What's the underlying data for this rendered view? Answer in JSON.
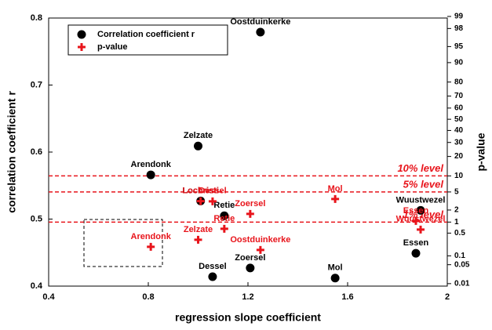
{
  "chart_data": {
    "type": "scatter",
    "xlabel": "regression slope coefficient",
    "ylabel": "correlation coefficient r",
    "y2label": "p-value",
    "xlim": [
      0.4,
      2
    ],
    "xticks": [
      0.4,
      0.8,
      1.2,
      1.6,
      2
    ],
    "ylim": [
      0.4,
      0.8
    ],
    "yticks": [
      0.4,
      0.5,
      0.6,
      0.7,
      0.8
    ],
    "y2lim": [
      0.008,
      98.9
    ],
    "y2scale": "probit",
    "y2ticks": [
      0.01,
      0.05,
      0.1,
      0.5,
      1,
      2,
      5,
      10,
      20,
      30,
      40,
      50,
      60,
      70,
      80,
      90,
      95,
      98,
      99
    ],
    "legend": "upper left",
    "series": [
      {
        "name": "Correlation coefficient r",
        "color": "#000000",
        "marker": "circle",
        "labels": [
          "Oostduinkerke",
          "Zelzate",
          "Arendonk",
          "Lochristi",
          "Retie",
          "Wuustwezel",
          "Essen",
          "Dessel",
          "Zoersel",
          "Mol"
        ],
        "x": [
          1.25,
          1.0,
          0.81,
          1.01,
          1.105,
          1.893,
          1.874,
          1.058,
          1.209,
          1.55
        ],
        "values": [
          0.779,
          0.609,
          0.566,
          0.527,
          0.505,
          0.513,
          0.449,
          0.414,
          0.427,
          0.412
        ]
      },
      {
        "name": "p-value",
        "color": "#e8141b",
        "marker": "plus",
        "axis": "y2",
        "labels": [
          "Lochristi",
          "Dessel",
          "Zoersel",
          "Mol",
          "Retie",
          "Zelzate",
          "Arendonk",
          "Oostduinkerke",
          "Essen",
          "Wuustwezel"
        ],
        "x": [
          1.01,
          1.058,
          1.209,
          1.55,
          1.105,
          1.0,
          0.81,
          1.25,
          1.874,
          1.893
        ],
        "values": [
          3.2,
          3.17,
          1.61,
          3.56,
          0.66,
          0.32,
          0.195,
          0.155,
          1.07,
          0.63
        ]
      }
    ],
    "reference_lines": [
      {
        "label": "10% level",
        "value": 10,
        "axis": "y2",
        "color": "#e8141b"
      },
      {
        "label": "5% level",
        "value": 5,
        "axis": "y2",
        "color": "#e8141b"
      },
      {
        "label": "1% level",
        "value": 1,
        "axis": "y2",
        "color": "#e8141b"
      }
    ]
  }
}
